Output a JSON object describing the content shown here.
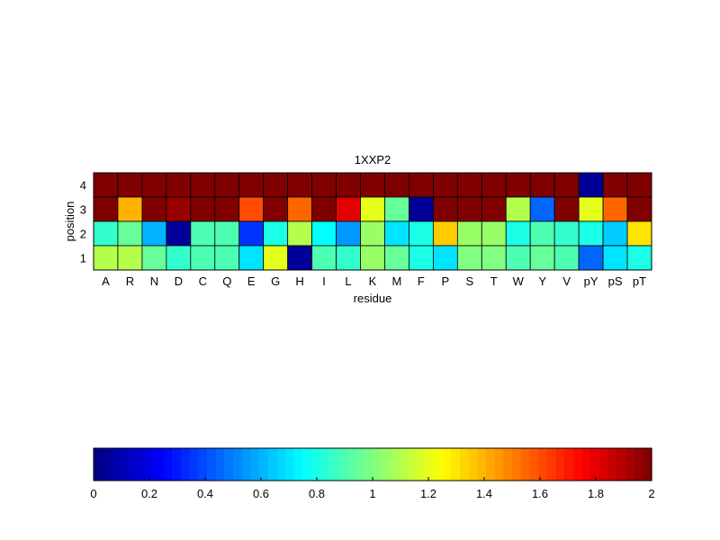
{
  "chart_data": {
    "type": "heatmap",
    "title": "1XXP2",
    "xlabel": "residue",
    "ylabel": "position",
    "x_categories": [
      "A",
      "R",
      "N",
      "D",
      "C",
      "Q",
      "E",
      "G",
      "H",
      "I",
      "L",
      "K",
      "M",
      "F",
      "P",
      "S",
      "T",
      "W",
      "Y",
      "V",
      "pY",
      "pS",
      "pT"
    ],
    "y_categories": [
      "4",
      "3",
      "2",
      "1"
    ],
    "values": [
      [
        2.0,
        2.0,
        2.0,
        2.0,
        2.0,
        2.0,
        2.0,
        2.0,
        2.0,
        2.0,
        2.0,
        2.0,
        2.0,
        2.0,
        2.0,
        2.0,
        2.0,
        2.0,
        2.0,
        2.0,
        0.05,
        2.0,
        2.0
      ],
      [
        2.0,
        1.4,
        2.0,
        1.95,
        2.0,
        2.0,
        1.6,
        2.0,
        1.55,
        2.0,
        1.8,
        1.2,
        0.95,
        0.05,
        2.0,
        2.0,
        2.0,
        1.1,
        0.45,
        2.0,
        1.2,
        1.55,
        2.0
      ],
      [
        0.85,
        0.95,
        0.6,
        0.05,
        0.9,
        0.9,
        0.35,
        0.8,
        1.1,
        0.75,
        0.55,
        1.05,
        0.7,
        0.8,
        1.35,
        1.05,
        1.05,
        0.8,
        0.9,
        0.85,
        0.8,
        0.65,
        1.3
      ],
      [
        1.1,
        1.1,
        0.95,
        0.85,
        0.9,
        0.9,
        0.7,
        1.2,
        0.05,
        0.9,
        0.85,
        1.05,
        0.95,
        0.8,
        0.7,
        1.0,
        1.0,
        0.9,
        0.95,
        0.9,
        0.45,
        0.7,
        0.8
      ]
    ],
    "colormap": "jet",
    "clim": [
      0,
      2
    ],
    "colorbar_ticks": [
      "0",
      "0.2",
      "0.4",
      "0.6",
      "0.8",
      "1",
      "1.2",
      "1.4",
      "1.6",
      "1.8",
      "2"
    ]
  }
}
